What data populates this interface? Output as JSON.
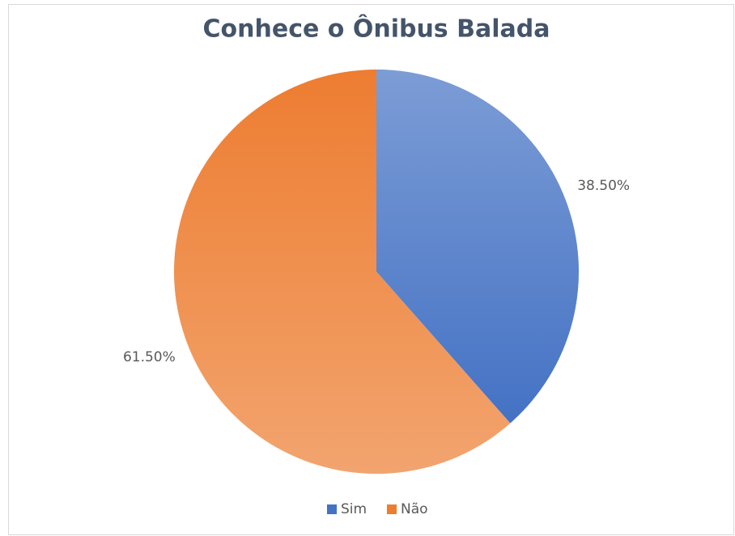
{
  "chart_data": {
    "type": "pie",
    "title": "Conhece o Ônibus Balada",
    "categories": [
      "Sim",
      "Não"
    ],
    "values": [
      38.5,
      61.5
    ],
    "value_labels": [
      "38.50%",
      "61.50%"
    ],
    "colors": [
      "#4472c4",
      "#ed7d31"
    ],
    "legend": "bottom"
  }
}
